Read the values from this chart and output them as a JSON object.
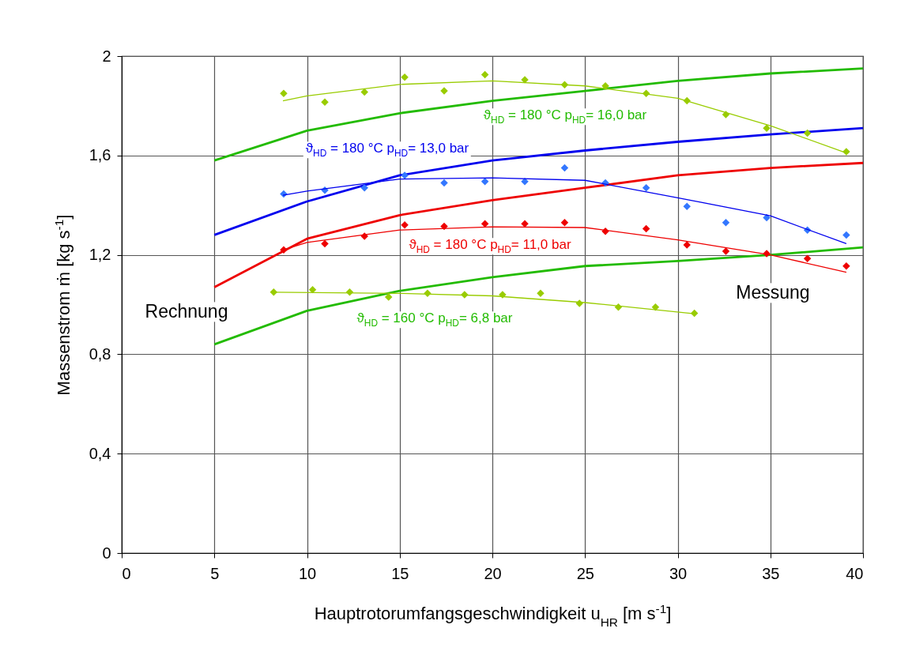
{
  "chart_data": {
    "type": "line",
    "xlabel": "Hauptrotorumfangsgeschwindigkeit     u$_{HR}$     [m s$^{-1}$]",
    "ylabel": "Massenstrom   ṁ   [kg s$^{-1}$]",
    "x": [
      5,
      10,
      15,
      20,
      25,
      30,
      35,
      40
    ],
    "series": [
      {
        "color": "#22bb00",
        "values": [
          1.58,
          1.7,
          1.77,
          1.82,
          1.86,
          1.9,
          1.93,
          1.95
        ]
      },
      {
        "color": "#0000ee",
        "values": [
          1.28,
          1.415,
          1.52,
          1.58,
          1.62,
          1.655,
          1.685,
          1.71
        ]
      },
      {
        "color": "#ee0000",
        "values": [
          1.07,
          1.265,
          1.36,
          1.42,
          1.47,
          1.52,
          1.55,
          1.57
        ]
      },
      {
        "color": "#22bb00",
        "values": [
          0.84,
          0.975,
          1.055,
          1.11,
          1.155,
          1.175,
          1.2,
          1.23
        ]
      },
      {
        "type": "scatter",
        "marker": "diamond",
        "color": "#99cc00",
        "x": [
          8.74,
          10.96,
          13.1,
          15.27,
          17.4,
          19.6,
          21.75,
          23.9,
          26.1,
          28.3,
          30.5,
          32.6,
          34.8,
          37,
          39.1
        ],
        "values": [
          1.85,
          1.815,
          1.855,
          1.915,
          1.86,
          1.925,
          1.905,
          1.885,
          1.88,
          1.85,
          1.82,
          1.765,
          1.71,
          1.69,
          1.615
        ]
      },
      {
        "type": "scatter",
        "marker": "diamond",
        "color": "#3377ff",
        "x": [
          8.74,
          10.96,
          13.1,
          15.27,
          17.4,
          19.6,
          21.75,
          23.9,
          26.1,
          28.3,
          30.5,
          32.6,
          34.8,
          37,
          39.1
        ],
        "values": [
          1.445,
          1.46,
          1.47,
          1.52,
          1.49,
          1.495,
          1.495,
          1.55,
          1.49,
          1.47,
          1.395,
          1.33,
          1.35,
          1.3,
          1.28
        ]
      },
      {
        "type": "scatter",
        "marker": "diamond",
        "color": "#ee0000",
        "x": [
          8.74,
          10.96,
          13.1,
          15.27,
          17.4,
          19.6,
          21.75,
          23.9,
          26.1,
          28.3,
          30.5,
          32.6,
          34.8,
          37,
          39.1
        ],
        "values": [
          1.22,
          1.245,
          1.275,
          1.32,
          1.315,
          1.325,
          1.325,
          1.33,
          1.295,
          1.305,
          1.24,
          1.215,
          1.205,
          1.185,
          1.155
        ]
      },
      {
        "type": "scatter",
        "marker": "diamond",
        "color": "#99cc00",
        "x": [
          8.2,
          10.3,
          12.3,
          14.4,
          16.5,
          18.5,
          20.55,
          22.6,
          24.7,
          26.8,
          28.8,
          30.9
        ],
        "values": [
          1.05,
          1.06,
          1.05,
          1.03,
          1.045,
          1.04,
          1.04,
          1.045,
          1.005,
          0.99,
          0.99,
          0.965
        ]
      },
      {
        "color": "#99cc00",
        "x": [
          8.7,
          10,
          15,
          20,
          25,
          30,
          35,
          39.1
        ],
        "values": [
          1.82,
          1.84,
          1.886,
          1.9,
          1.88,
          1.83,
          1.72,
          1.61
        ]
      },
      {
        "color": "#0000ee",
        "x": [
          8.7,
          10,
          15,
          20,
          25,
          30,
          35,
          39.1
        ],
        "values": [
          1.44,
          1.457,
          1.505,
          1.51,
          1.5,
          1.43,
          1.357,
          1.245
        ]
      },
      {
        "color": "#ee0000",
        "x": [
          8.7,
          10,
          15,
          20,
          25,
          30,
          35,
          39.1
        ],
        "values": [
          1.22,
          1.25,
          1.3,
          1.313,
          1.31,
          1.26,
          1.2,
          1.13
        ]
      },
      {
        "color": "#99cc00",
        "x": [
          8.2,
          15,
          20,
          25,
          30.9
        ],
        "values": [
          1.05,
          1.045,
          1.035,
          1.008,
          0.963
        ]
      }
    ],
    "annotations": [
      "ϑ$_{HD}$ = 180 °C  p$_{HD}$= 16,0 bar",
      "ϑ$_{HD}$ = 180 °C  p$_{HD}$= 13,0 bar",
      "ϑ$_{HD}$ = 180 °C  p$_{HD}$= 11,0 bar",
      "ϑ$_{HD}$ = 160 °C  p$_{HD}$= 6,8 bar",
      "Rechnung",
      "Messung"
    ],
    "xlim": [
      0,
      40
    ],
    "xticks": [
      0,
      5,
      10,
      15,
      20,
      25,
      30,
      35,
      40
    ],
    "ylim": [
      0,
      2
    ],
    "yticks": [
      0,
      {
        "value": 0.4,
        "label": "0,4"
      },
      {
        "value": 0.8,
        "label": "0,8"
      },
      {
        "value": 1.2,
        "label": "1,2"
      },
      {
        "value": 1.6,
        "label": "1,6"
      },
      2
    ],
    "grid": true
  }
}
